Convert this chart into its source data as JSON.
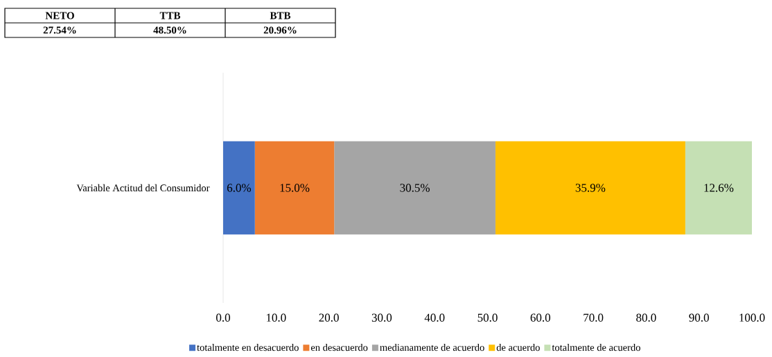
{
  "chart_data": {
    "type": "bar",
    "orientation": "horizontal",
    "stacked": true,
    "categories": [
      "Variable Actitud del Consumidor"
    ],
    "series": [
      {
        "name": "totalmente en desacuerdo",
        "color": "#4472c4",
        "values": [
          6.0
        ],
        "value_labels": [
          "6.0%"
        ]
      },
      {
        "name": "en desacuerdo",
        "color": "#ed7d31",
        "values": [
          15.0
        ],
        "value_labels": [
          "15.0%"
        ]
      },
      {
        "name": "medianamente de acuerdo",
        "color": "#a5a5a5",
        "values": [
          30.5
        ],
        "value_labels": [
          "30.5%"
        ]
      },
      {
        "name": "de acuerdo",
        "color": "#ffc000",
        "values": [
          35.9
        ],
        "value_labels": [
          "35.9%"
        ]
      },
      {
        "name": "totalmente de acuerdo",
        "color": "#c5e0b4",
        "values": [
          12.6
        ],
        "value_labels": [
          "12.6%"
        ]
      }
    ],
    "xlim": [
      0,
      100
    ],
    "xticks": [
      {
        "value": 0,
        "label": "0.0"
      },
      {
        "value": 10,
        "label": "10.0"
      },
      {
        "value": 20,
        "label": "20.0"
      },
      {
        "value": 30,
        "label": "30.0"
      },
      {
        "value": 40,
        "label": "40.0"
      },
      {
        "value": 50,
        "label": "50.0"
      },
      {
        "value": 60,
        "label": "60.0"
      },
      {
        "value": 70,
        "label": "70.0"
      },
      {
        "value": 80,
        "label": "80.0"
      },
      {
        "value": 90,
        "label": "90.0"
      },
      {
        "value": 100,
        "label": "100.0"
      }
    ],
    "legend": "bottom",
    "annotations": [
      "NETO",
      "TTB",
      "BTB",
      "27.54%",
      "48.50%",
      "20.96%"
    ]
  }
}
